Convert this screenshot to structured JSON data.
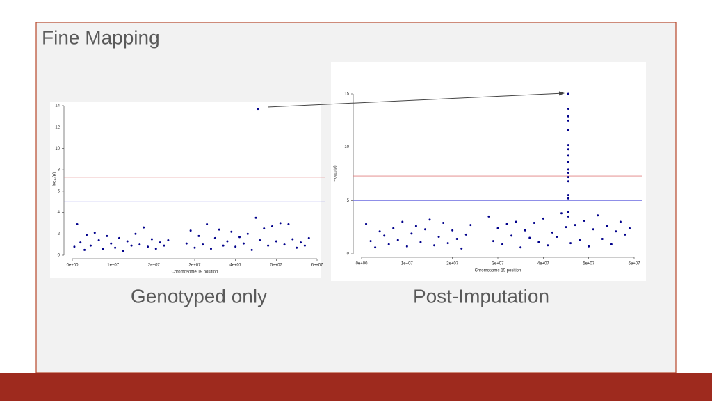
{
  "title": "Fine Mapping",
  "chart_data": [
    {
      "type": "scatter",
      "caption": "Genotyped only",
      "x_label": "Chromosome 19 position",
      "y_label": "−log₁₀(p)",
      "color": "#00008b",
      "grid": false,
      "hlines": [
        {
          "value": 7.3,
          "color": "#e08080"
        },
        {
          "value": 5,
          "color": "#6a6ae0"
        }
      ],
      "xlim": [
        0,
        60000000
      ],
      "xticks": [
        {
          "value": 0,
          "label": "0e+00"
        },
        {
          "value": 10000000,
          "label": "1e+07"
        },
        {
          "value": 20000000,
          "label": "2e+07"
        },
        {
          "value": 30000000,
          "label": "3e+07"
        },
        {
          "value": 40000000,
          "label": "4e+07"
        },
        {
          "value": 50000000,
          "label": "5e+07"
        },
        {
          "value": 60000000,
          "label": "6e+07"
        }
      ],
      "ylim": [
        0,
        14
      ],
      "yticks": [
        0,
        2,
        4,
        6,
        8,
        10,
        12,
        14
      ],
      "x": [
        500000,
        1200000,
        2000000,
        3000000,
        3500000,
        4500000,
        5500000,
        6500000,
        7500000,
        8500000,
        9500000,
        10500000,
        11500000,
        12500000,
        13500000,
        14500000,
        15500000,
        16500000,
        17500000,
        18500000,
        19500000,
        20500000,
        21500000,
        22500000,
        23500000,
        28000000,
        29000000,
        30000000,
        31000000,
        32000000,
        33000000,
        34000000,
        35000000,
        36000000,
        37000000,
        38000000,
        39000000,
        40000000,
        41000000,
        42000000,
        43000000,
        44000000,
        45000000,
        45500000,
        46000000,
        47000000,
        48000000,
        49000000,
        50000000,
        51000000,
        52000000,
        53000000,
        54000000,
        55000000,
        56000000,
        57000000,
        58000000
      ],
      "values": [
        0.8,
        2.9,
        1.2,
        0.5,
        1.9,
        0.9,
        2.1,
        1.4,
        0.6,
        1.8,
        1.1,
        0.7,
        1.6,
        0.4,
        1.3,
        0.9,
        2.0,
        1.0,
        2.6,
        0.8,
        1.5,
        0.6,
        1.2,
        0.9,
        1.4,
        1.1,
        2.3,
        0.7,
        1.8,
        1.0,
        2.9,
        0.6,
        1.6,
        2.4,
        0.9,
        1.3,
        2.2,
        0.8,
        1.7,
        1.1,
        2.0,
        0.5,
        3.5,
        13.7,
        1.4,
        2.5,
        0.9,
        2.7,
        1.3,
        3.0,
        1.0,
        2.9,
        1.5,
        0.7,
        1.2,
        0.9,
        1.6
      ]
    },
    {
      "type": "scatter",
      "caption": "Post-Imputation",
      "x_label": "Chromosome 19 position",
      "y_label": "−log₁₀(p)",
      "color": "#00008b",
      "grid": false,
      "hlines": [
        {
          "value": 7.3,
          "color": "#e08080"
        },
        {
          "value": 5,
          "color": "#6a6ae0"
        }
      ],
      "xlim": [
        0,
        60000000
      ],
      "xticks": [
        {
          "value": 0,
          "label": "0e+00"
        },
        {
          "value": 10000000,
          "label": "1e+07"
        },
        {
          "value": 20000000,
          "label": "2e+07"
        },
        {
          "value": 30000000,
          "label": "3e+07"
        },
        {
          "value": 40000000,
          "label": "4e+07"
        },
        {
          "value": 50000000,
          "label": "5e+07"
        },
        {
          "value": 60000000,
          "label": "6e+07"
        }
      ],
      "ylim": [
        0,
        15
      ],
      "yticks": [
        0,
        5,
        10,
        15
      ],
      "x": [
        1000000,
        2000000,
        3000000,
        4000000,
        5000000,
        6000000,
        7000000,
        8000000,
        9000000,
        10000000,
        11000000,
        12000000,
        13000000,
        14000000,
        15000000,
        16000000,
        17000000,
        18000000,
        19000000,
        20000000,
        21000000,
        22000000,
        23000000,
        24000000,
        28000000,
        29000000,
        30000000,
        31000000,
        32000000,
        33000000,
        34000000,
        35000000,
        36000000,
        37000000,
        38000000,
        39000000,
        40000000,
        41000000,
        42000000,
        43000000,
        44000000,
        45000000,
        46000000,
        47000000,
        48000000,
        49000000,
        50000000,
        51000000,
        52000000,
        53000000,
        54000000,
        55000000,
        56000000,
        57000000,
        58000000,
        59000000,
        45500000,
        45500000,
        45500000,
        45500000,
        45500000,
        45500000,
        45500000,
        45500000,
        45500000,
        45500000,
        45500000,
        45500000,
        45500000,
        45500000,
        45500000,
        45500000,
        45500000
      ],
      "values": [
        2.8,
        1.2,
        0.6,
        2.1,
        1.7,
        0.9,
        2.4,
        1.3,
        3.0,
        0.7,
        1.9,
        2.6,
        1.1,
        2.3,
        3.2,
        0.8,
        1.6,
        2.9,
        1.0,
        2.2,
        1.4,
        0.5,
        1.8,
        2.7,
        3.5,
        1.2,
        2.4,
        0.9,
        2.8,
        1.7,
        3.0,
        0.6,
        2.2,
        1.5,
        2.9,
        1.1,
        3.3,
        0.8,
        2.0,
        1.6,
        3.8,
        2.5,
        1.0,
        2.7,
        1.3,
        3.1,
        0.7,
        2.3,
        3.6,
        1.4,
        2.6,
        0.9,
        2.1,
        3.0,
        1.8,
        2.4,
        15,
        13.6,
        12.9,
        12.5,
        11.6,
        10.2,
        9.8,
        9.2,
        8.6,
        7.9,
        7.6,
        7.2,
        6.8,
        5.5,
        5.2,
        3.9,
        3.5
      ]
    }
  ]
}
